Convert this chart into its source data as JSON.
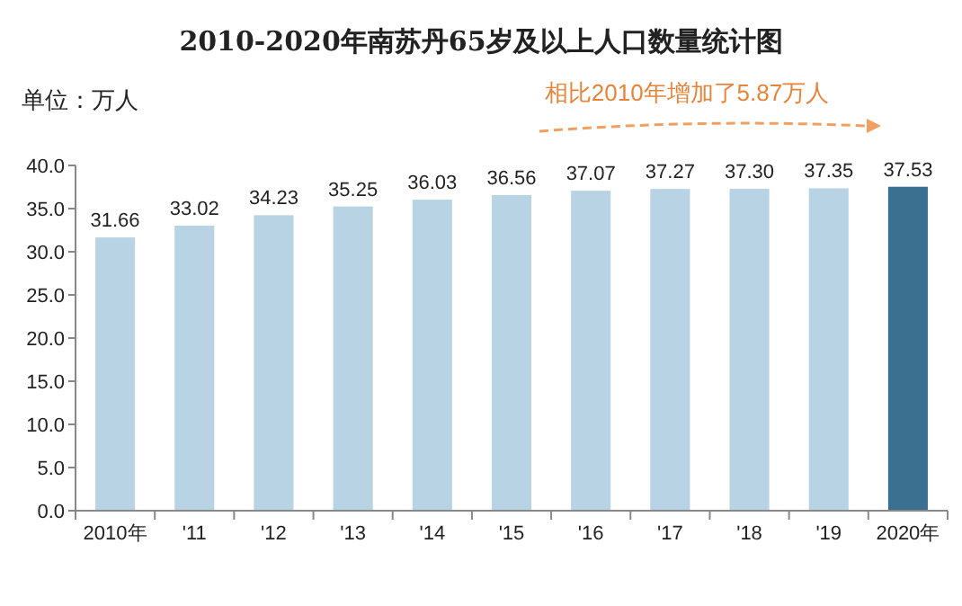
{
  "chart_data": {
    "type": "bar",
    "title": "2010-2020年南苏丹65岁及以上人口数量统计图",
    "ylabel": "单位：万人",
    "categories": [
      "2010年",
      "'11",
      "'12",
      "'13",
      "'14",
      "'15",
      "'16",
      "'17",
      "'18",
      "'19",
      "2020年"
    ],
    "values": [
      31.66,
      33.02,
      34.23,
      35.25,
      36.03,
      36.56,
      37.07,
      37.27,
      37.3,
      37.35,
      37.53
    ],
    "colors": [
      "#b7d3e4",
      "#b7d3e4",
      "#b7d3e4",
      "#b7d3e4",
      "#b7d3e4",
      "#b7d3e4",
      "#b7d3e4",
      "#b7d3e4",
      "#b7d3e4",
      "#b7d3e4",
      "#3b7091"
    ],
    "value_labels": [
      "31.66",
      "33.02",
      "34.23",
      "35.25",
      "36.03",
      "36.56",
      "37.07",
      "37.27",
      "37.30",
      "37.35",
      "37.53"
    ],
    "ylim": [
      0,
      40
    ],
    "yticks": [
      {
        "value": 0,
        "label": "0.0"
      },
      {
        "value": 5,
        "label": "5.0"
      },
      {
        "value": 10,
        "label": "10.0"
      },
      {
        "value": 15,
        "label": "15.0"
      },
      {
        "value": 20,
        "label": "20.0"
      },
      {
        "value": 25,
        "label": "25.0"
      },
      {
        "value": 30,
        "label": "30.0"
      },
      {
        "value": 35,
        "label": "35.0"
      },
      {
        "value": 40,
        "label": "40.0"
      }
    ],
    "grid": false,
    "annotations": [
      "相比2010年增加了5.87万人"
    ]
  }
}
